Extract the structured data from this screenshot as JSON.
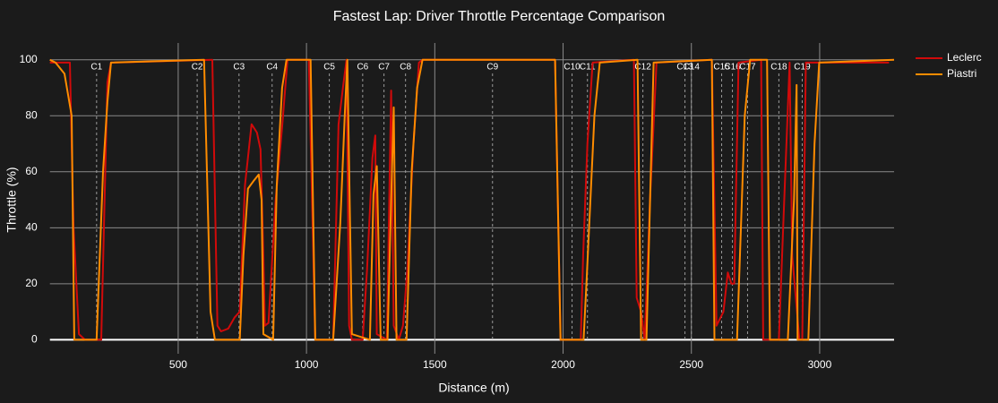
{
  "chart_data": {
    "type": "line",
    "title": "Fastest Lap: Driver Throttle Percentage Comparison",
    "x_label": "Distance (m)",
    "y_label": "Throttle (%)",
    "xlim": [
      0,
      3290
    ],
    "xticks": [
      500,
      1000,
      1500,
      2000,
      2500,
      3000
    ],
    "ylim": [
      -5,
      106
    ],
    "yticks": [
      0,
      20,
      40,
      60,
      80,
      100
    ],
    "grid": true,
    "legend": "outside-right",
    "series": [
      {
        "name": "Leclerc",
        "color": "#d10a0a",
        "x": [
          0,
          78,
          92,
          113,
          137,
          200,
          224,
          238,
          633,
          653,
          667,
          695,
          720,
          740,
          760,
          786,
          807,
          821,
          832,
          838,
          852,
          880,
          905,
          926,
          1009,
          1034,
          1104,
          1125,
          1142,
          1156,
          1166,
          1177,
          1219,
          1236,
          1257,
          1268,
          1274,
          1313,
          1330,
          1340,
          1360,
          1376,
          1393,
          1417,
          1438,
          1452,
          1969,
          1990,
          2069,
          2078,
          2095,
          2115,
          2276,
          2287,
          2304,
          2318,
          2339,
          2364,
          2580,
          2598,
          2625,
          2642,
          2656,
          2667,
          2684,
          2772,
          2780,
          2841,
          2862,
          2883,
          2893,
          2921,
          2932,
          2946,
          3270
        ],
        "values": [
          99,
          99,
          40,
          2,
          0,
          0,
          92,
          99,
          100,
          5,
          3,
          4,
          8,
          10,
          55,
          77,
          74,
          68,
          30,
          5,
          6,
          50,
          76,
          100,
          100,
          0,
          0,
          77,
          90,
          100,
          5,
          0,
          0,
          25,
          65,
          73,
          2,
          0,
          89,
          5,
          0,
          5,
          25,
          70,
          99,
          100,
          100,
          0,
          0,
          30,
          70,
          99,
          100,
          15,
          10,
          0,
          50,
          99,
          100,
          5,
          10,
          24,
          20,
          20,
          99,
          100,
          0,
          0,
          50,
          99,
          30,
          0,
          0,
          99,
          99
        ]
      },
      {
        "name": "Piastri",
        "color": "#ff8c00",
        "x": [
          0,
          22,
          57,
          85,
          95,
          182,
          207,
          224,
          238,
          601,
          626,
          643,
          740,
          754,
          772,
          796,
          814,
          825,
          832,
          870,
          884,
          905,
          922,
          1016,
          1034,
          1104,
          1132,
          1149,
          1159,
          1177,
          1247,
          1261,
          1274,
          1289,
          1316,
          1330,
          1340,
          1351,
          1390,
          1410,
          1431,
          1452,
          1969,
          1990,
          2080,
          2091,
          2122,
          2143,
          2290,
          2304,
          2325,
          2353,
          2580,
          2590,
          2678,
          2696,
          2708,
          2729,
          2795,
          2806,
          2876,
          2900,
          2910,
          2914,
          2956,
          2980,
          2998,
          3290
        ],
        "values": [
          100,
          99,
          95,
          80,
          0,
          0,
          60,
          85,
          99,
          100,
          10,
          0,
          0,
          30,
          54,
          57,
          59,
          50,
          2,
          0,
          55,
          90,
          100,
          100,
          0,
          0,
          42,
          80,
          100,
          2,
          0,
          52,
          62,
          0,
          0,
          50,
          83,
          0,
          0,
          60,
          90,
          100,
          100,
          0,
          0,
          20,
          80,
          99,
          100,
          0,
          0,
          99,
          100,
          0,
          0,
          48,
          80,
          100,
          100,
          0,
          0,
          50,
          91,
          0,
          0,
          70,
          99,
          100
        ]
      }
    ],
    "corners": {
      "labels": [
        "C1",
        "C2",
        "C3",
        "C4",
        "C5",
        "C6",
        "C7",
        "C8",
        "C9",
        "C10",
        "C11",
        "C12",
        "C13",
        "C14",
        "C15",
        "C16",
        "C17",
        "C18",
        "C19"
      ],
      "distances": [
        182,
        574,
        737,
        866,
        1089,
        1219,
        1302,
        1386,
        1725,
        2035,
        2095,
        2311,
        2475,
        2500,
        2618,
        2660,
        2719,
        2841,
        2932
      ]
    }
  }
}
